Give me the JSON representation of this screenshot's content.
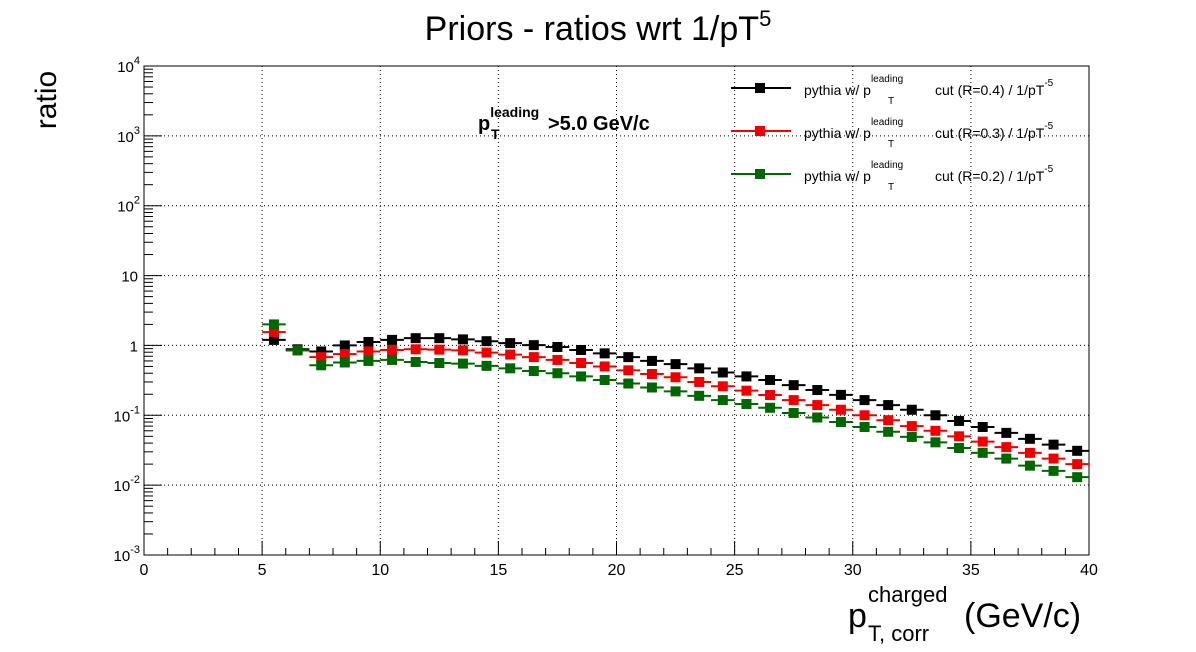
{
  "chart_data": {
    "type": "scatter",
    "title": {
      "main": "Priors - ratios wrt 1/pT",
      "sup": "5"
    },
    "annotation": {
      "p": "p",
      "sub": "T",
      "sup": "leading",
      "rest": ">5.0 GeV/c"
    },
    "xlabel": {
      "p": "p",
      "sub": "T, corr",
      "sup": "charged",
      "rest": "(GeV/c)"
    },
    "ylabel": "ratio",
    "xlim": [
      0,
      40
    ],
    "ylim": [
      0.001,
      10000
    ],
    "yscale": "log",
    "grid": true,
    "legend_position": "top-right",
    "x_ticks": [
      "0",
      "5",
      "10",
      "15",
      "20",
      "25",
      "30",
      "35",
      "40"
    ],
    "y_ticks": [
      {
        "base": "10",
        "exp": "-3"
      },
      {
        "base": "10",
        "exp": "-2"
      },
      {
        "base": "10",
        "exp": "-1"
      },
      {
        "base": "1",
        "exp": ""
      },
      {
        "base": "10",
        "exp": ""
      },
      {
        "base": "10",
        "exp": "2"
      },
      {
        "base": "10",
        "exp": "3"
      },
      {
        "base": "10",
        "exp": "4"
      }
    ],
    "x": [
      5.5,
      6.5,
      7.5,
      8.5,
      9.5,
      10.5,
      11.5,
      12.5,
      13.5,
      14.5,
      15.5,
      16.5,
      17.5,
      18.5,
      19.5,
      20.5,
      21.5,
      22.5,
      23.5,
      24.5,
      25.5,
      26.5,
      27.5,
      28.5,
      29.5,
      30.5,
      31.5,
      32.5,
      33.5,
      34.5,
      35.5,
      36.5,
      37.5,
      38.5,
      39.5
    ],
    "series": [
      {
        "legend": {
          "pre": "pythia w/ p",
          "sub": "T",
          "sup": "leading",
          "mid": "cut (R=0.4) / 1/pT",
          "sup2": "-5"
        },
        "color": "#000000",
        "values": [
          1.2,
          0.88,
          0.82,
          1.0,
          1.12,
          1.2,
          1.27,
          1.27,
          1.22,
          1.15,
          1.08,
          1.01,
          0.95,
          0.86,
          0.77,
          0.68,
          0.6,
          0.54,
          0.47,
          0.41,
          0.36,
          0.32,
          0.27,
          0.23,
          0.196,
          0.165,
          0.14,
          0.12,
          0.1,
          0.083,
          0.068,
          0.056,
          0.046,
          0.038,
          0.031
        ]
      },
      {
        "legend": {
          "pre": "pythia w/ p",
          "sub": "T",
          "sup": "leading",
          "mid": "cut (R=0.3) / 1/pT",
          "sup2": "-5"
        },
        "color": "#ee0000",
        "values": [
          1.55,
          0.85,
          0.68,
          0.75,
          0.82,
          0.86,
          0.88,
          0.87,
          0.85,
          0.79,
          0.74,
          0.68,
          0.62,
          0.56,
          0.5,
          0.44,
          0.39,
          0.35,
          0.3,
          0.26,
          0.225,
          0.195,
          0.165,
          0.14,
          0.12,
          0.1,
          0.085,
          0.07,
          0.06,
          0.05,
          0.042,
          0.035,
          0.029,
          0.024,
          0.02
        ]
      },
      {
        "legend": {
          "pre": "pythia w/ p",
          "sub": "T",
          "sup": "leading",
          "mid": "cut (R=0.2) / 1/pT",
          "sup2": "-5"
        },
        "color": "#006600",
        "values": [
          2.0,
          0.85,
          0.52,
          0.57,
          0.6,
          0.62,
          0.58,
          0.56,
          0.55,
          0.51,
          0.47,
          0.43,
          0.4,
          0.36,
          0.32,
          0.285,
          0.25,
          0.22,
          0.19,
          0.165,
          0.145,
          0.128,
          0.108,
          0.093,
          0.08,
          0.068,
          0.058,
          0.049,
          0.041,
          0.034,
          0.029,
          0.024,
          0.019,
          0.016,
          0.013
        ]
      }
    ]
  }
}
